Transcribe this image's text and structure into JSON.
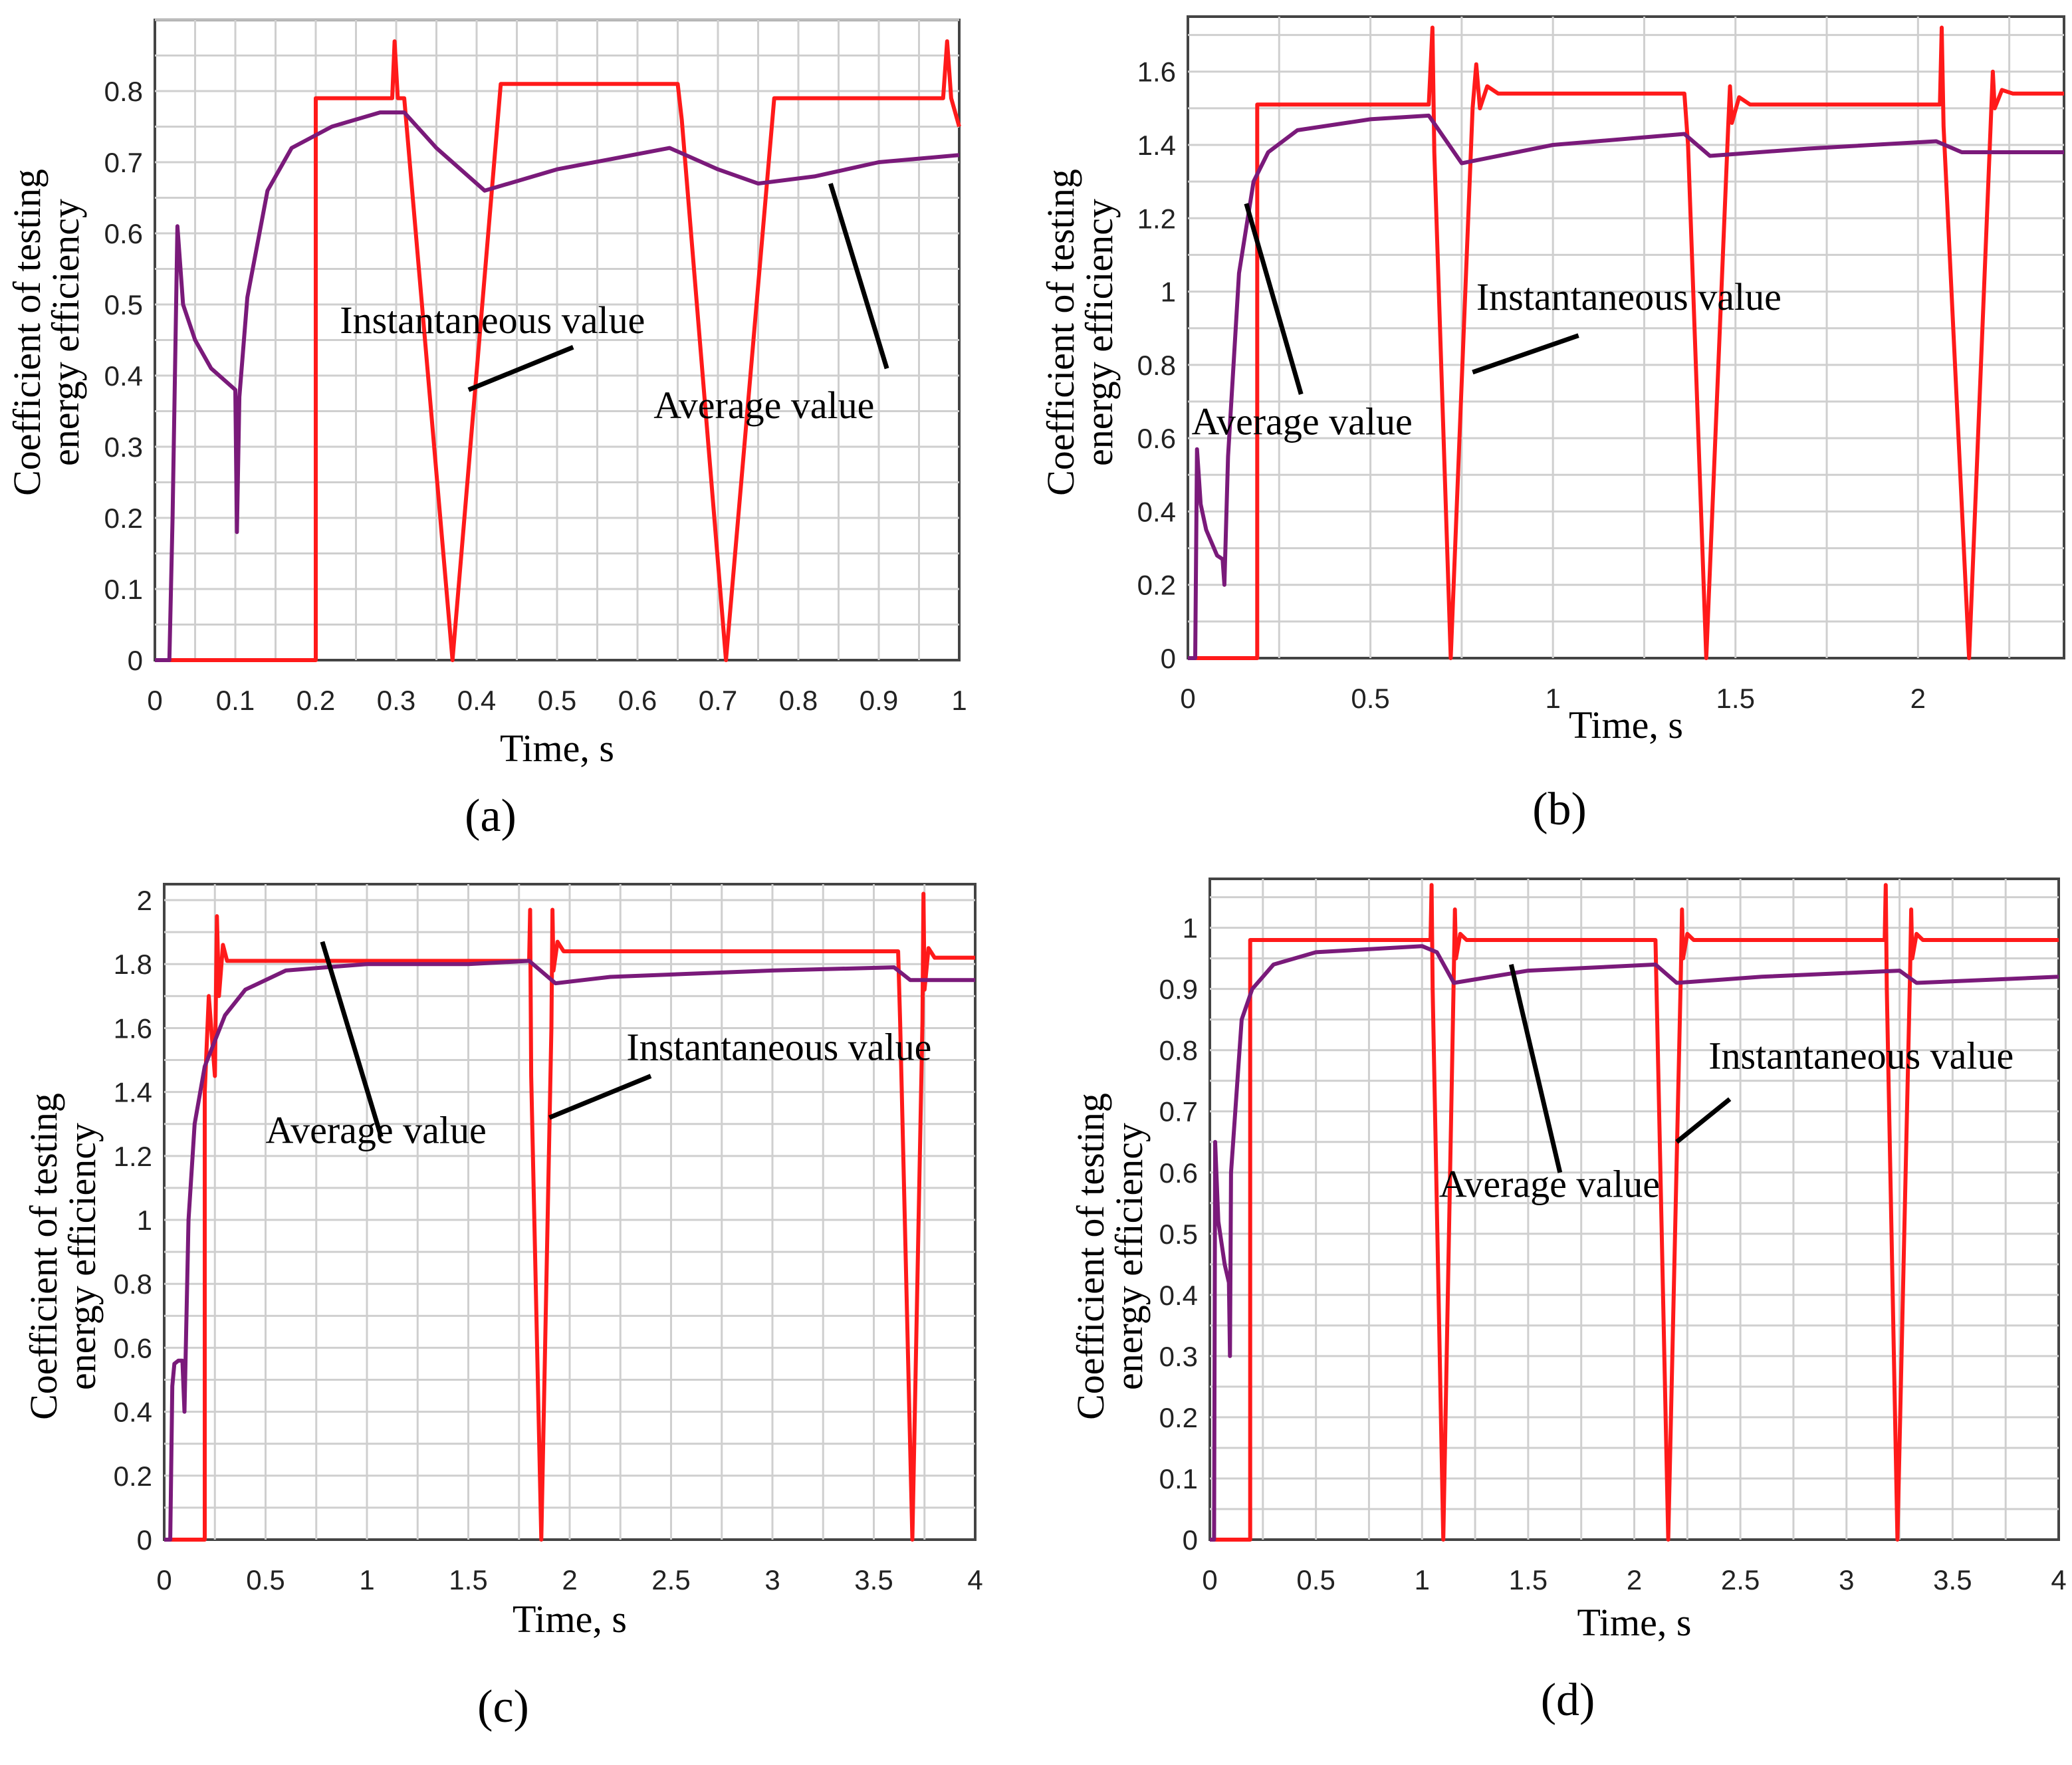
{
  "colors": {
    "instantaneous": "#ff1a1a",
    "average": "#7a1a7a",
    "grid": "#cfcfcf",
    "pointer": "#000000"
  },
  "chart_data": [
    {
      "id": "a",
      "type": "line",
      "panel_label": "(a)",
      "xlabel": "Time, s",
      "ylabel_line1": "Coefficient of testing",
      "ylabel_line2": "energy efficiency",
      "xlim": [
        0,
        1
      ],
      "ylim": [
        0,
        0.9
      ],
      "xticks": [
        0,
        0.1,
        0.2,
        0.3,
        0.4,
        0.5,
        0.6,
        0.7,
        0.8,
        0.9,
        1
      ],
      "xtick_labels": [
        "0",
        "0.1",
        "0.2",
        "0.3",
        "0.4",
        "0.5",
        "0.6",
        "0.7",
        "0.8",
        "0.9",
        "1"
      ],
      "yticks": [
        0,
        0.1,
        0.2,
        0.3,
        0.4,
        0.5,
        0.6,
        0.7,
        0.8
      ],
      "ytick_labels": [
        "0",
        "0.1",
        "0.2",
        "0.3",
        "0.4",
        "0.5",
        "0.6",
        "0.7",
        "0.8"
      ],
      "annotations": [
        {
          "text": "Instantaneous value",
          "x": 0.23,
          "y": 0.46,
          "point_from": [
            0.52,
            0.44
          ],
          "point_to": [
            0.39,
            0.38
          ]
        },
        {
          "text": "Average value",
          "x": 0.62,
          "y": 0.34,
          "point_from": [
            0.91,
            0.41
          ],
          "point_to": [
            0.84,
            0.67
          ]
        }
      ],
      "series": [
        {
          "key": "instantaneous",
          "x": [
            0,
            0.2,
            0.2,
            0.295,
            0.298,
            0.302,
            0.31,
            0.37,
            0.43,
            0.65,
            0.655,
            0.71,
            0.77,
            0.98,
            0.985,
            0.99,
            1.0
          ],
          "y": [
            0,
            0,
            0.79,
            0.79,
            0.87,
            0.79,
            0.79,
            0,
            0.81,
            0.81,
            0.76,
            0,
            0.79,
            0.79,
            0.87,
            0.79,
            0.75
          ]
        },
        {
          "key": "average",
          "x": [
            0,
            0.018,
            0.022,
            0.028,
            0.035,
            0.05,
            0.07,
            0.1,
            0.102,
            0.105,
            0.115,
            0.14,
            0.17,
            0.22,
            0.28,
            0.31,
            0.35,
            0.41,
            0.5,
            0.64,
            0.7,
            0.75,
            0.82,
            0.9,
            1.0
          ],
          "y": [
            0,
            0,
            0.2,
            0.61,
            0.5,
            0.45,
            0.41,
            0.38,
            0.18,
            0.37,
            0.51,
            0.66,
            0.72,
            0.75,
            0.77,
            0.77,
            0.72,
            0.66,
            0.69,
            0.72,
            0.69,
            0.67,
            0.68,
            0.7,
            0.71
          ]
        }
      ]
    },
    {
      "id": "b",
      "type": "line",
      "panel_label": "(b)",
      "xlabel": "Time, s",
      "ylabel_line1": "Coefficient of testing",
      "ylabel_line2": "energy efficiency",
      "xlim": [
        0,
        2.4
      ],
      "ylim": [
        0,
        1.75
      ],
      "xticks": [
        0,
        0.5,
        1,
        1.5,
        2
      ],
      "xtick_labels": [
        "0",
        "0.5",
        "1",
        "1.5",
        "2"
      ],
      "yticks": [
        0,
        0.2,
        0.4,
        0.6,
        0.8,
        1,
        1.2,
        1.4,
        1.6
      ],
      "ytick_labels": [
        "0",
        "0.2",
        "0.4",
        "0.6",
        "0.8",
        "1",
        "1.2",
        "1.4",
        "1.6"
      ],
      "annotations": [
        {
          "text": "Instantaneous value",
          "x": 0.79,
          "y": 0.95,
          "point_from": [
            1.07,
            0.88
          ],
          "point_to": [
            0.78,
            0.78
          ]
        },
        {
          "text": "Average value",
          "x": 0.01,
          "y": 0.61,
          "point_from": [
            0.31,
            0.72
          ],
          "point_to": [
            0.16,
            1.24
          ]
        }
      ],
      "series": [
        {
          "key": "instantaneous",
          "x": [
            0,
            0.19,
            0.19,
            0.66,
            0.67,
            0.675,
            0.72,
            0.78,
            0.79,
            0.8,
            0.82,
            0.85,
            1.36,
            1.37,
            1.42,
            1.48,
            1.485,
            1.49,
            1.51,
            1.54,
            2.06,
            2.065,
            2.07,
            2.14,
            2.2,
            2.205,
            2.21,
            2.23,
            2.26,
            2.4
          ],
          "y": [
            0,
            0,
            1.51,
            1.51,
            1.72,
            1.38,
            0,
            1.5,
            1.62,
            1.5,
            1.56,
            1.54,
            1.54,
            1.4,
            0,
            1.45,
            1.56,
            1.46,
            1.53,
            1.51,
            1.51,
            1.72,
            1.45,
            0,
            1.48,
            1.6,
            1.5,
            1.55,
            1.54,
            1.54
          ]
        },
        {
          "key": "average",
          "x": [
            0,
            0.02,
            0.025,
            0.035,
            0.05,
            0.08,
            0.095,
            0.1,
            0.11,
            0.14,
            0.18,
            0.22,
            0.3,
            0.5,
            0.66,
            0.75,
            1.0,
            1.36,
            1.43,
            1.7,
            2.05,
            2.12,
            2.4
          ],
          "y": [
            0,
            0,
            0.57,
            0.42,
            0.35,
            0.28,
            0.27,
            0.2,
            0.55,
            1.05,
            1.3,
            1.38,
            1.44,
            1.47,
            1.48,
            1.35,
            1.4,
            1.43,
            1.37,
            1.39,
            1.41,
            1.38,
            1.38
          ]
        }
      ]
    },
    {
      "id": "c",
      "type": "line",
      "panel_label": "(c)",
      "xlabel": "Time, s",
      "ylabel_line1": "Coefficient of testing",
      "ylabel_line2": "energy efficiency",
      "xlim": [
        0,
        4
      ],
      "ylim": [
        0,
        2.05
      ],
      "xticks": [
        0,
        0.5,
        1,
        1.5,
        2,
        2.5,
        3,
        3.5,
        4
      ],
      "xtick_labels": [
        "0",
        "0.5",
        "1",
        "1.5",
        "2",
        "2.5",
        "3",
        "3.5",
        "4"
      ],
      "yticks": [
        0,
        0.2,
        0.4,
        0.6,
        0.8,
        1,
        1.2,
        1.4,
        1.6,
        1.8,
        2
      ],
      "ytick_labels": [
        "0",
        "0.2",
        "0.4",
        "0.6",
        "0.8",
        "1",
        "1.2",
        "1.4",
        "1.6",
        "1.8",
        "2"
      ],
      "annotations": [
        {
          "text": "Instantaneous value",
          "x": 2.28,
          "y": 1.5,
          "point_from": [
            2.4,
            1.45
          ],
          "point_to": [
            1.9,
            1.32
          ]
        },
        {
          "text": "Average value",
          "x": 0.5,
          "y": 1.24,
          "point_from": [
            1.07,
            1.26
          ],
          "point_to": [
            0.78,
            1.87
          ]
        }
      ],
      "series": [
        {
          "key": "instantaneous",
          "x": [
            0,
            0.2,
            0.2,
            0.22,
            0.25,
            0.26,
            0.27,
            0.29,
            0.31,
            1.8,
            1.805,
            1.81,
            1.86,
            1.91,
            1.915,
            1.92,
            1.94,
            1.97,
            3.62,
            3.63,
            3.69,
            3.74,
            3.745,
            3.75,
            3.77,
            3.8,
            4.0
          ],
          "y": [
            0,
            0,
            1.4,
            1.7,
            1.45,
            1.95,
            1.7,
            1.86,
            1.81,
            1.81,
            1.97,
            1.45,
            0,
            1.6,
            1.97,
            1.78,
            1.87,
            1.84,
            1.84,
            1.62,
            0,
            1.62,
            2.02,
            1.72,
            1.85,
            1.82,
            1.82
          ]
        },
        {
          "key": "average",
          "x": [
            0,
            0.03,
            0.04,
            0.05,
            0.07,
            0.09,
            0.1,
            0.12,
            0.15,
            0.2,
            0.3,
            0.4,
            0.6,
            1.0,
            1.5,
            1.8,
            1.93,
            2.2,
            3.0,
            3.6,
            3.68,
            4.0
          ],
          "y": [
            0,
            0,
            0.48,
            0.55,
            0.56,
            0.56,
            0.4,
            1.0,
            1.3,
            1.48,
            1.64,
            1.72,
            1.78,
            1.8,
            1.8,
            1.81,
            1.74,
            1.76,
            1.78,
            1.79,
            1.75,
            1.75
          ]
        }
      ]
    },
    {
      "id": "d",
      "type": "line",
      "panel_label": "(d)",
      "xlabel": "Time, s",
      "ylabel_line1": "Coefficient of testing",
      "ylabel_line2": "energy efficiency",
      "xlim": [
        0,
        4
      ],
      "ylim": [
        0,
        1.08
      ],
      "xticks": [
        0,
        0.5,
        1,
        1.5,
        2,
        2.5,
        3,
        3.5,
        4
      ],
      "xtick_labels": [
        "0",
        "0.5",
        "1",
        "1.5",
        "2",
        "2.5",
        "3",
        "3.5",
        "4"
      ],
      "yticks": [
        0,
        0.1,
        0.2,
        0.3,
        0.4,
        0.5,
        0.6,
        0.7,
        0.8,
        0.9,
        1
      ],
      "ytick_labels": [
        "0",
        "0.1",
        "0.2",
        "0.3",
        "0.4",
        "0.5",
        "0.6",
        "0.7",
        "0.8",
        "0.9",
        "1"
      ],
      "annotations": [
        {
          "text": "Instantaneous value",
          "x": 2.35,
          "y": 0.77,
          "point_from": [
            2.45,
            0.72
          ],
          "point_to": [
            2.2,
            0.65
          ]
        },
        {
          "text": "Average value",
          "x": 1.08,
          "y": 0.56,
          "point_from": [
            1.65,
            0.6
          ],
          "point_to": [
            1.42,
            0.94
          ]
        }
      ],
      "series": [
        {
          "key": "instantaneous",
          "x": [
            0,
            0.19,
            0.19,
            1.04,
            1.045,
            1.05,
            1.1,
            1.15,
            1.155,
            1.16,
            1.18,
            1.21,
            2.1,
            2.105,
            2.16,
            2.22,
            2.225,
            2.23,
            2.25,
            2.28,
            3.18,
            3.185,
            3.19,
            3.24,
            3.3,
            3.305,
            3.31,
            3.33,
            3.36,
            4.0
          ],
          "y": [
            0,
            0,
            0.98,
            0.98,
            1.07,
            0.9,
            0,
            0.93,
            1.03,
            0.95,
            0.99,
            0.98,
            0.98,
            0.9,
            0,
            0.93,
            1.03,
            0.95,
            0.99,
            0.98,
            0.98,
            1.07,
            0.9,
            0,
            0.93,
            1.03,
            0.95,
            0.99,
            0.98,
            0.98
          ]
        },
        {
          "key": "average",
          "x": [
            0,
            0.02,
            0.025,
            0.04,
            0.07,
            0.09,
            0.095,
            0.1,
            0.12,
            0.15,
            0.2,
            0.3,
            0.5,
            1.0,
            1.07,
            1.15,
            1.5,
            2.1,
            2.2,
            2.6,
            3.25,
            3.33,
            4.0
          ],
          "y": [
            0,
            0,
            0.65,
            0.52,
            0.45,
            0.42,
            0.3,
            0.6,
            0.7,
            0.85,
            0.9,
            0.94,
            0.96,
            0.97,
            0.96,
            0.91,
            0.93,
            0.94,
            0.91,
            0.92,
            0.93,
            0.91,
            0.92
          ]
        }
      ]
    }
  ]
}
